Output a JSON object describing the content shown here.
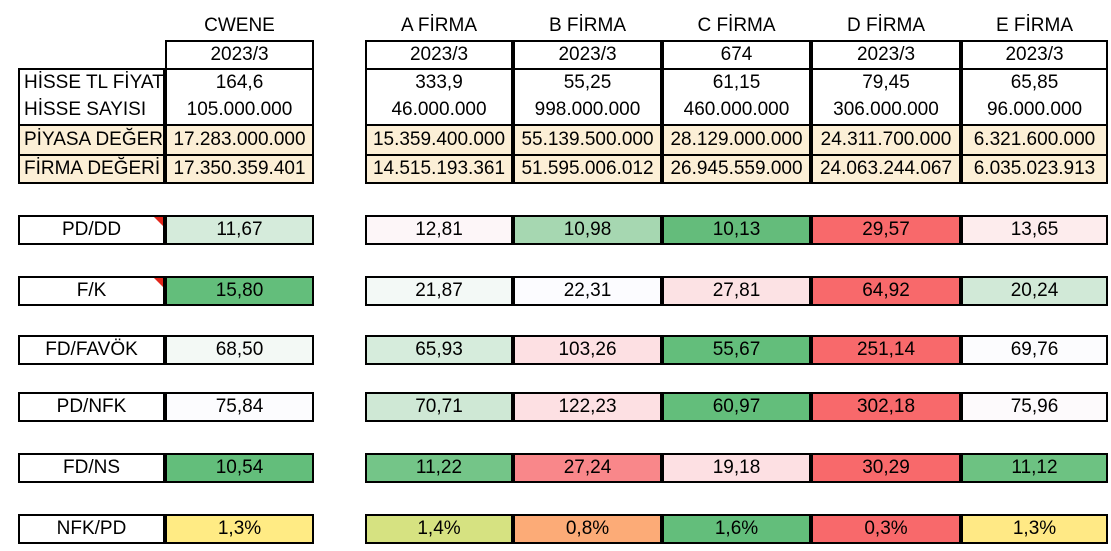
{
  "columns": [
    "CWENE",
    "A FİRMA",
    "B FİRMA",
    "C FİRMA",
    "D FİRMA",
    "E FİRMA"
  ],
  "periods": [
    "2023/3",
    "2023/3",
    "2023/3",
    "674",
    "2023/3",
    "2023/3"
  ],
  "info_rows": [
    {
      "label": "HİSSE TL FİYATI",
      "values": [
        "164,6",
        "333,9",
        "55,25",
        "61,15",
        "79,45",
        "65,85"
      ]
    },
    {
      "label": "HİSSE SAYISI",
      "values": [
        "105.000.000",
        "46.000.000",
        "998.000.000",
        "460.000.000",
        "306.000.000",
        "96.000.000"
      ]
    },
    {
      "label": "PİYASA DEĞERİ",
      "values": [
        "17.283.000.000",
        "15.359.400.000",
        "55.139.500.000",
        "28.129.000.000",
        "24.311.700.000",
        "6.321.600.000"
      ]
    },
    {
      "label": "FİRMA DEĞERİ",
      "values": [
        "17.350.359.401",
        "14.515.193.361",
        "51.595.006.012",
        "26.945.559.000",
        "24.063.244.067",
        "6.035.023.913"
      ]
    }
  ],
  "ratio_rows": [
    {
      "label": "PD/DD",
      "values": [
        "11,67",
        "12,81",
        "10,98",
        "10,13",
        "29,57",
        "13,65"
      ],
      "colors": [
        "#d5ebdb",
        "#fdf6f8",
        "#a6d7b1",
        "#64bc7b",
        "#f8696b",
        "#fdeced"
      ]
    },
    {
      "label": "F/K",
      "values": [
        "15,80",
        "21,87",
        "22,31",
        "27,81",
        "64,92",
        "20,24"
      ],
      "colors": [
        "#63be7b",
        "#f3f9f6",
        "#fcfcff",
        "#fce2e4",
        "#f8696b",
        "#d1e9d7"
      ]
    },
    {
      "label": "FD/FAVÖK",
      "values": [
        "68,50",
        "65,93",
        "103,26",
        "55,67",
        "251,14",
        "69,76"
      ],
      "colors": [
        "#f3f9f5",
        "#d6ecdc",
        "#fde0e3",
        "#63be7b",
        "#f8696b",
        "#fcfcfe"
      ]
    },
    {
      "label": "PD/NFK",
      "values": [
        "75,84",
        "70,71",
        "122,23",
        "60,97",
        "302,18",
        "75,96"
      ],
      "colors": [
        "#fcfcfe",
        "#cfe8d5",
        "#fde0e3",
        "#63be7b",
        "#f8696b",
        "#fdfafc"
      ]
    },
    {
      "label": "FD/NS",
      "values": [
        "10,54",
        "11,22",
        "27,24",
        "19,18",
        "30,29",
        "11,12"
      ],
      "colors": [
        "#63be7b",
        "#74c588",
        "#f9878a",
        "#fde0e3",
        "#f8696b",
        "#6dc282"
      ]
    },
    {
      "label": "NFK/PD",
      "values": [
        "1,3%",
        "1,4%",
        "0,8%",
        "1,6%",
        "0,3%",
        "1,3%"
      ],
      "colors": [
        "#ffeb84",
        "#d6e281",
        "#fcab77",
        "#63be7b",
        "#f8696b",
        "#ffe985"
      ]
    }
  ]
}
